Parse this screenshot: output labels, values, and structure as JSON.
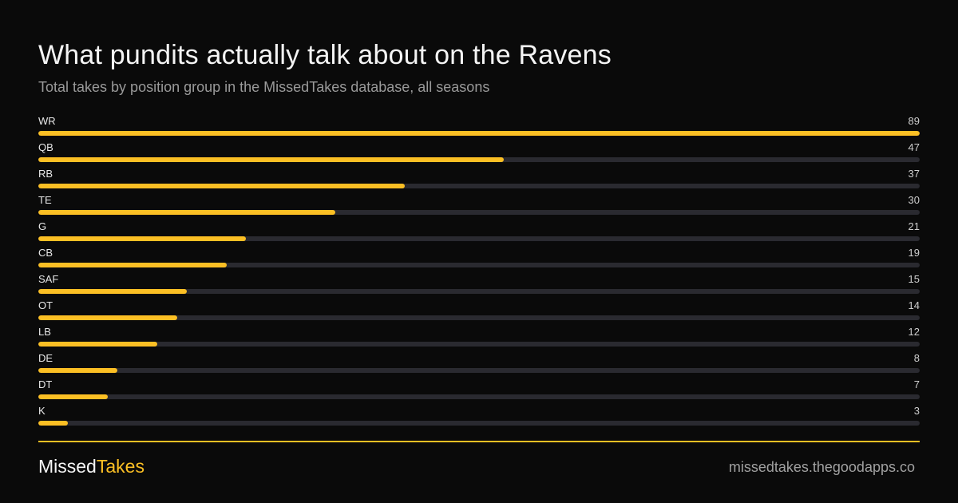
{
  "chart_data": {
    "type": "bar",
    "orientation": "horizontal",
    "title": "What pundits actually talk about on the Ravens",
    "subtitle": "Total takes by position group in the MissedTakes database, all seasons",
    "categories": [
      "WR",
      "QB",
      "RB",
      "TE",
      "G",
      "CB",
      "SAF",
      "OT",
      "LB",
      "DE",
      "DT",
      "K"
    ],
    "values": [
      89,
      47,
      37,
      30,
      21,
      19,
      15,
      14,
      12,
      8,
      7,
      3
    ],
    "xlim": [
      0,
      89
    ],
    "grid": false,
    "legend": "none",
    "colors": {
      "bar": "#fbbf24",
      "track": "#2a2a30"
    }
  },
  "footer": {
    "brand_part1": "Missed",
    "brand_part2": "Takes",
    "site": "missedtakes.thegoodapps.co"
  },
  "colors": {
    "background": "#0a0a0a",
    "accent": "#fbbf24"
  }
}
